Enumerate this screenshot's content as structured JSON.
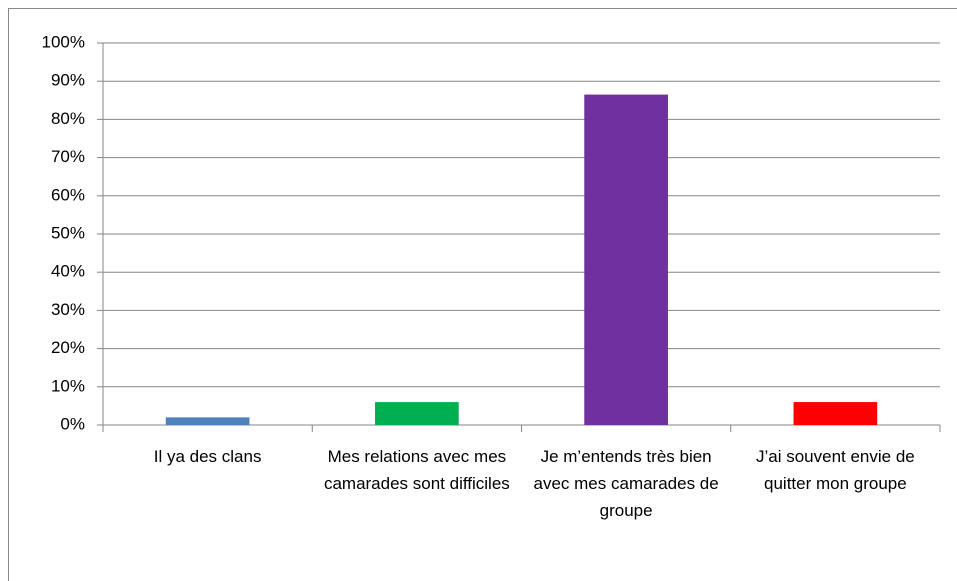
{
  "chart_data": {
    "type": "bar",
    "categories": [
      "Il ya des clans",
      "Mes relations avec mes camarades sont difficiles",
      "Je m’entends très bien avec mes camarades de groupe",
      "J’ai souvent envie de quitter mon groupe"
    ],
    "values": [
      2,
      6,
      86.5,
      6
    ],
    "colors": [
      "#4f81bd",
      "#00b050",
      "#7030a0",
      "#ff0000"
    ],
    "ylim": [
      0,
      100
    ],
    "yticks": [
      {
        "value": 0,
        "label": "0%"
      },
      {
        "value": 10,
        "label": "10%"
      },
      {
        "value": 20,
        "label": "20%"
      },
      {
        "value": 30,
        "label": "30%"
      },
      {
        "value": 40,
        "label": "40%"
      },
      {
        "value": 50,
        "label": "50%"
      },
      {
        "value": 60,
        "label": "60%"
      },
      {
        "value": 70,
        "label": "70%"
      },
      {
        "value": 80,
        "label": "80%"
      },
      {
        "value": 90,
        "label": "90%"
      },
      {
        "value": 100,
        "label": "100%"
      }
    ],
    "grid": true
  }
}
